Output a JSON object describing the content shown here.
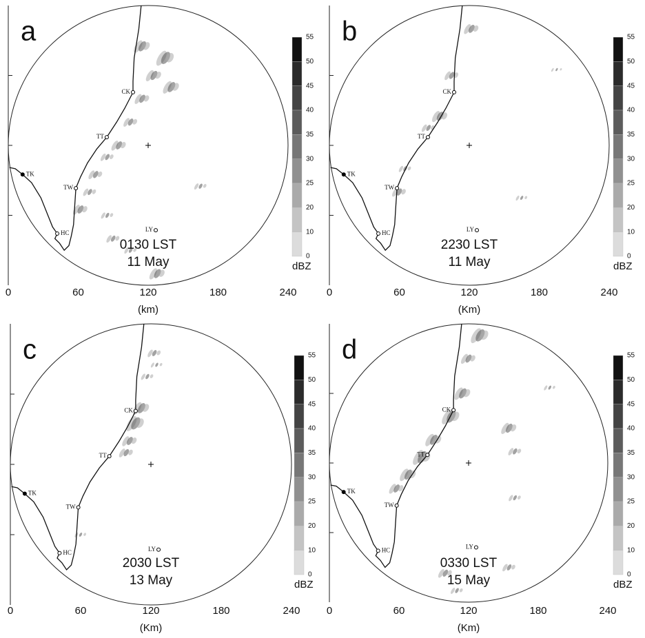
{
  "panels": [
    {
      "letter": "a",
      "time": "0130 LST",
      "date": "11 May",
      "x_ticks": [
        0,
        60,
        120,
        180,
        240
      ],
      "x_label": "(km)",
      "colorbar_ticks": [
        55,
        50,
        45,
        40,
        35,
        30,
        25,
        20,
        10,
        0
      ],
      "colorbar_unit": "dBZ",
      "stations": [
        "CK",
        "TT",
        "TK",
        "TW",
        "HC",
        "LY"
      ]
    },
    {
      "letter": "b",
      "time": "2230 LST",
      "date": "11 May",
      "x_ticks": [
        0,
        60,
        120,
        180,
        240
      ],
      "x_label": "(Km)",
      "colorbar_ticks": [
        55,
        50,
        45,
        40,
        35,
        30,
        25,
        20,
        10,
        0
      ],
      "colorbar_unit": "dBZ",
      "stations": [
        "CK",
        "TT",
        "TK",
        "TW",
        "HC",
        "LY"
      ]
    },
    {
      "letter": "c",
      "time": "2030 LST",
      "date": "13 May",
      "x_ticks": [
        0,
        60,
        120,
        180,
        240
      ],
      "x_label": "(Km)",
      "colorbar_ticks": [
        55,
        50,
        45,
        40,
        35,
        30,
        25,
        20,
        10,
        0
      ],
      "colorbar_unit": "dBZ",
      "stations": [
        "CK",
        "TT",
        "TK",
        "TW",
        "HC",
        "LY"
      ]
    },
    {
      "letter": "d",
      "time": "0330 LST",
      "date": "15 May",
      "x_ticks": [
        0,
        60,
        120,
        180,
        240
      ],
      "x_label": "(Km)",
      "colorbar_ticks": [
        55,
        50,
        45,
        40,
        35,
        30,
        25,
        20,
        10,
        0
      ],
      "colorbar_unit": "dBZ",
      "stations": [
        "CK",
        "TT",
        "TK",
        "TW",
        "HC",
        "LY"
      ]
    }
  ]
}
